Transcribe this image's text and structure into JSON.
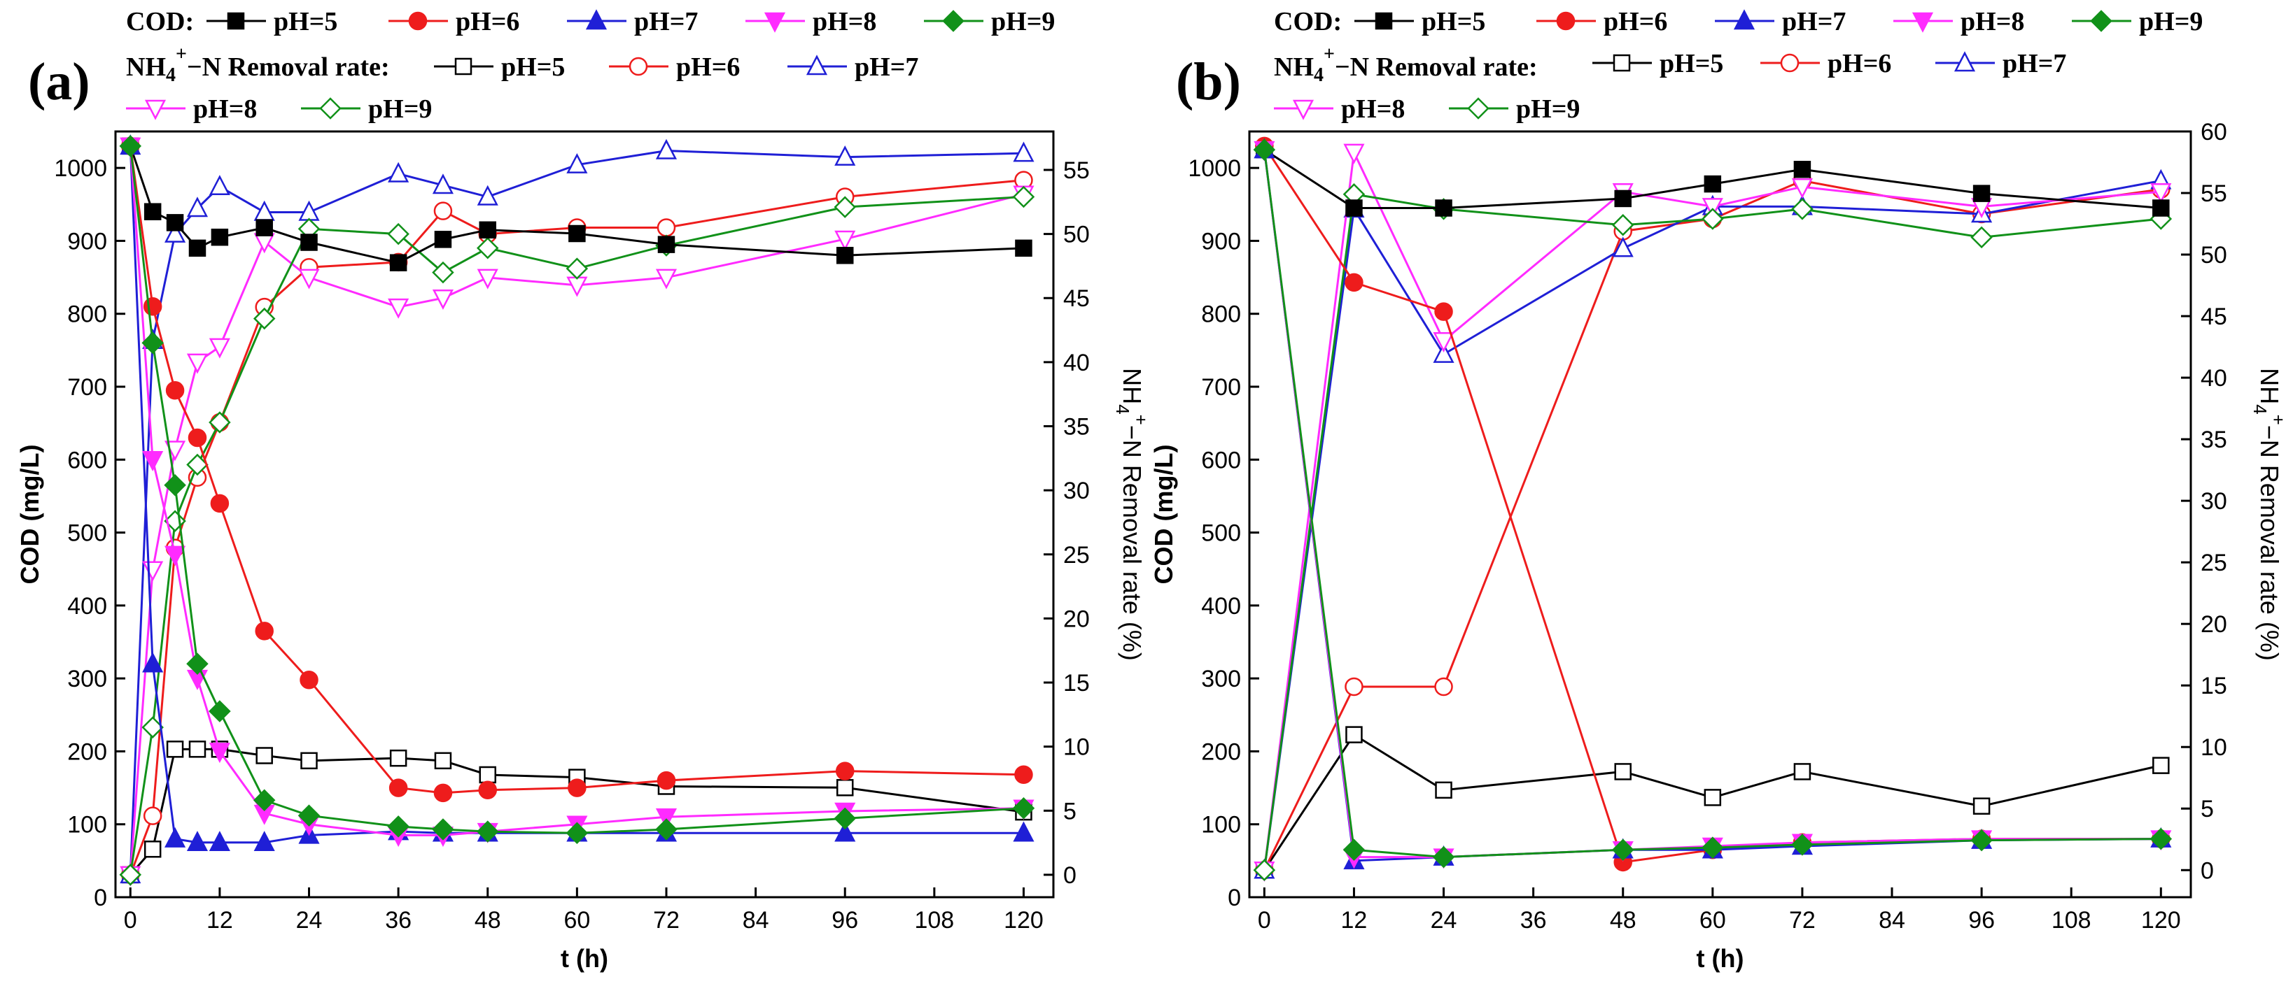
{
  "figure": {
    "panel_labels": [
      "(a)",
      "(b)"
    ],
    "cod_legend_prefix": "COD:",
    "nh4_legend_prefix": "NH4+−N Removal rate:",
    "series_names": [
      "pH=5",
      "pH=6",
      "pH=7",
      "pH=8",
      "pH=9"
    ],
    "colors": [
      "#000000",
      "#ee1c1c",
      "#1f1fd6",
      "#ff2bff",
      "#119119"
    ]
  },
  "chart_data": [
    {
      "type": "line",
      "panel": "(a)",
      "xlabel": "t (h)",
      "ylabel_left": "COD (mg/L)",
      "ylabel_right": "NH4+−N Removal rate (%)",
      "x_ticks": [
        0,
        12,
        24,
        36,
        48,
        60,
        72,
        84,
        96,
        108,
        120
      ],
      "y_left_ticks": [
        0,
        100,
        200,
        300,
        400,
        500,
        600,
        700,
        800,
        900,
        1000
      ],
      "y_right_ticks": [
        0,
        5,
        10,
        15,
        20,
        25,
        30,
        35,
        40,
        45,
        50,
        55
      ],
      "xlim": [
        -2,
        124
      ],
      "ylim_left": [
        0,
        1050
      ],
      "ylim_right": [
        -1.75,
        58
      ],
      "cod_series": [
        {
          "name": "pH=5",
          "x": [
            0,
            3,
            6,
            9,
            12,
            18,
            24,
            36,
            42,
            48,
            60,
            72,
            96,
            120
          ],
          "y": [
            1030,
            940,
            925,
            890,
            905,
            918,
            898,
            870,
            902,
            915,
            910,
            895,
            880,
            890
          ]
        },
        {
          "name": "pH=6",
          "x": [
            0,
            3,
            6,
            9,
            12,
            18,
            24,
            36,
            42,
            48,
            60,
            72,
            96,
            120
          ],
          "y": [
            1030,
            810,
            695,
            630,
            540,
            365,
            298,
            150,
            143,
            147,
            150,
            160,
            173,
            168
          ]
        },
        {
          "name": "pH=7",
          "x": [
            0,
            3,
            6,
            9,
            12,
            18,
            24,
            36,
            42,
            48,
            60,
            72,
            96,
            120
          ],
          "y": [
            1030,
            320,
            80,
            75,
            75,
            75,
            85,
            90,
            88,
            88,
            88,
            88,
            88,
            88
          ]
        },
        {
          "name": "pH=8",
          "x": [
            0,
            3,
            6,
            9,
            12,
            18,
            24,
            36,
            42,
            48,
            60,
            72,
            96,
            120
          ],
          "y": [
            1030,
            600,
            470,
            300,
            200,
            115,
            100,
            85,
            85,
            90,
            100,
            110,
            118,
            122
          ]
        },
        {
          "name": "pH=9",
          "x": [
            0,
            3,
            6,
            9,
            12,
            18,
            24,
            36,
            42,
            48,
            60,
            72,
            96,
            120
          ],
          "y": [
            1030,
            760,
            565,
            320,
            255,
            133,
            112,
            97,
            93,
            90,
            88,
            93,
            108,
            122
          ]
        }
      ],
      "nh4_series": [
        {
          "name": "pH=5",
          "x": [
            0,
            3,
            6,
            9,
            12,
            18,
            24,
            36,
            42,
            48,
            60,
            72,
            96,
            120
          ],
          "y": [
            0,
            2,
            9.8,
            9.8,
            9.8,
            9.3,
            8.9,
            9.1,
            8.9,
            7.8,
            7.6,
            6.9,
            6.8,
            4.9
          ]
        },
        {
          "name": "pH=6",
          "x": [
            0,
            3,
            6,
            9,
            12,
            18,
            24,
            36,
            42,
            48,
            60,
            72,
            96,
            120
          ],
          "y": [
            0,
            4.6,
            25.5,
            31.0,
            35.3,
            44.3,
            47.4,
            47.8,
            51.8,
            50.0,
            50.5,
            50.5,
            52.9,
            54.2
          ]
        },
        {
          "name": "pH=7",
          "x": [
            0,
            3,
            6,
            9,
            12,
            18,
            24,
            36,
            42,
            48,
            60,
            72,
            96,
            120
          ],
          "y": [
            0,
            41.7,
            50.0,
            52.0,
            53.7,
            51.7,
            51.7,
            54.7,
            53.8,
            52.9,
            55.4,
            56.5,
            56.0,
            56.3
          ]
        },
        {
          "name": "pH=8",
          "x": [
            0,
            3,
            6,
            9,
            12,
            18,
            24,
            36,
            42,
            48,
            60,
            72,
            96,
            120
          ],
          "y": [
            0,
            23.8,
            33.2,
            40.0,
            41.2,
            49.4,
            46.6,
            44.3,
            45.0,
            46.6,
            46.0,
            46.6,
            49.6,
            53.1
          ]
        },
        {
          "name": "pH=9",
          "x": [
            0,
            3,
            6,
            9,
            12,
            18,
            24,
            36,
            42,
            48,
            60,
            72,
            96,
            120
          ],
          "y": [
            0,
            11.5,
            27.6,
            32.0,
            35.3,
            43.4,
            50.4,
            50.0,
            47.0,
            48.9,
            47.3,
            49.1,
            52.1,
            52.9
          ]
        }
      ]
    },
    {
      "type": "line",
      "panel": "(b)",
      "xlabel": "t (h)",
      "ylabel_left": "COD (mg/L)",
      "ylabel_right": "NH4+−N Removal rate (%)",
      "x_ticks": [
        0,
        12,
        24,
        36,
        48,
        60,
        72,
        84,
        96,
        108,
        120
      ],
      "y_left_ticks": [
        0,
        100,
        200,
        300,
        400,
        500,
        600,
        700,
        800,
        900,
        1000
      ],
      "y_right_ticks": [
        0,
        5,
        10,
        15,
        20,
        25,
        30,
        35,
        40,
        45,
        50,
        55,
        60
      ],
      "xlim": [
        -2,
        124
      ],
      "ylim_left": [
        0,
        1050
      ],
      "ylim_right": [
        -2.2,
        60
      ],
      "cod_series": [
        {
          "name": "pH=5",
          "x": [
            0,
            12,
            24,
            48,
            60,
            72,
            96,
            120
          ],
          "y": [
            1025,
            945,
            945,
            958,
            978,
            998,
            965,
            945
          ]
        },
        {
          "name": "pH=6",
          "x": [
            0,
            12,
            24,
            48,
            60,
            72,
            96,
            120
          ],
          "y": [
            1030,
            843,
            803,
            48,
            65,
            75,
            80,
            80
          ]
        },
        {
          "name": "pH=7",
          "x": [
            0,
            12,
            24,
            48,
            60,
            72,
            96,
            120
          ],
          "y": [
            1025,
            50,
            55,
            65,
            65,
            70,
            78,
            80
          ]
        },
        {
          "name": "pH=8",
          "x": [
            0,
            12,
            24,
            48,
            60,
            72,
            96,
            120
          ],
          "y": [
            1025,
            55,
            55,
            65,
            70,
            75,
            80,
            80
          ]
        },
        {
          "name": "pH=9",
          "x": [
            0,
            12,
            24,
            48,
            60,
            72,
            96,
            120
          ],
          "y": [
            1025,
            65,
            55,
            65,
            68,
            72,
            78,
            80
          ]
        }
      ],
      "nh4_series": [
        {
          "name": "pH=5",
          "x": [
            0,
            12,
            24,
            48,
            60,
            72,
            96,
            120
          ],
          "y": [
            0,
            11.0,
            6.5,
            8.0,
            5.9,
            8.0,
            5.2,
            8.5
          ]
        },
        {
          "name": "pH=6",
          "x": [
            0,
            12,
            24,
            48,
            60,
            72,
            96,
            120
          ],
          "y": [
            0,
            14.9,
            14.9,
            51.9,
            52.9,
            56.0,
            53.3,
            55.3
          ]
        },
        {
          "name": "pH=7",
          "x": [
            0,
            12,
            24,
            48,
            60,
            72,
            96,
            120
          ],
          "y": [
            0,
            53.7,
            41.9,
            50.5,
            53.9,
            53.9,
            53.3,
            56.0
          ]
        },
        {
          "name": "pH=8",
          "x": [
            0,
            12,
            24,
            48,
            60,
            72,
            96,
            120
          ],
          "y": [
            0,
            58.3,
            43.0,
            55.1,
            53.9,
            55.5,
            53.9,
            55.1
          ]
        },
        {
          "name": "pH=9",
          "x": [
            0,
            12,
            24,
            48,
            60,
            72,
            96,
            120
          ],
          "y": [
            0,
            54.9,
            53.7,
            52.4,
            52.9,
            53.7,
            51.4,
            52.9
          ]
        }
      ]
    }
  ]
}
